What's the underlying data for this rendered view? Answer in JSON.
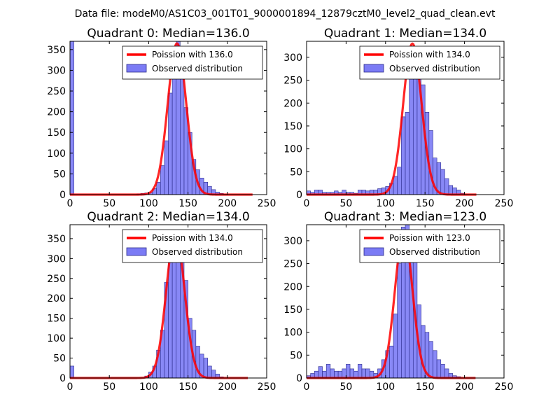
{
  "suptitle": "Data file: modeM0/AS1C03_001T01_9000001894_12879cztM0_level2_quad_clean.evt",
  "colors": {
    "bars": "#7b7bf5",
    "bar_edge": "#2b2b8a",
    "fit_line": "#ff0000",
    "frame": "#000000"
  },
  "legend_labels": {
    "observed": "Observed distribution"
  },
  "chart_data": [
    {
      "type": "bar",
      "title": "Quadrant 0: Median=136.0",
      "median": 136.0,
      "legend_fit": "Poission with 136.0",
      "xlim": [
        0,
        250
      ],
      "ylim": [
        0,
        370
      ],
      "xticks": [
        0,
        50,
        100,
        150,
        200,
        250
      ],
      "yticks": [
        0,
        50,
        100,
        150,
        200,
        250,
        300,
        350
      ],
      "bin_width": 5,
      "bins": [
        [
          0,
          370
        ],
        [
          85,
          2
        ],
        [
          90,
          3
        ],
        [
          95,
          4
        ],
        [
          100,
          5
        ],
        [
          105,
          15
        ],
        [
          110,
          30
        ],
        [
          115,
          70
        ],
        [
          120,
          130
        ],
        [
          125,
          245
        ],
        [
          130,
          330
        ],
        [
          135,
          370
        ],
        [
          140,
          340
        ],
        [
          145,
          210
        ],
        [
          150,
          150
        ],
        [
          155,
          85
        ],
        [
          160,
          60
        ],
        [
          165,
          40
        ],
        [
          170,
          30
        ],
        [
          175,
          20
        ],
        [
          180,
          12
        ],
        [
          185,
          6
        ],
        [
          190,
          3
        ],
        [
          195,
          1
        ]
      ],
      "fit": {
        "peak": 365,
        "mean": 136,
        "sigma": 11.7,
        "line_end": 232
      }
    },
    {
      "type": "bar",
      "title": "Quadrant 1: Median=134.0",
      "median": 134.0,
      "legend_fit": "Poission with 134.0",
      "xlim": [
        0,
        250
      ],
      "ylim": [
        0,
        335
      ],
      "xticks": [
        0,
        50,
        100,
        150,
        200,
        250
      ],
      "yticks": [
        0,
        50,
        100,
        150,
        200,
        250,
        300
      ],
      "bin_width": 5,
      "bins": [
        [
          0,
          8
        ],
        [
          5,
          5
        ],
        [
          10,
          10
        ],
        [
          15,
          10
        ],
        [
          20,
          5
        ],
        [
          25,
          5
        ],
        [
          30,
          5
        ],
        [
          35,
          8
        ],
        [
          40,
          5
        ],
        [
          45,
          10
        ],
        [
          50,
          5
        ],
        [
          55,
          5
        ],
        [
          60,
          3
        ],
        [
          65,
          10
        ],
        [
          70,
          10
        ],
        [
          75,
          8
        ],
        [
          80,
          10
        ],
        [
          85,
          10
        ],
        [
          90,
          13
        ],
        [
          95,
          15
        ],
        [
          100,
          18
        ],
        [
          105,
          25
        ],
        [
          110,
          40
        ],
        [
          115,
          60
        ],
        [
          120,
          170
        ],
        [
          125,
          180
        ],
        [
          130,
          290
        ],
        [
          135,
          320
        ],
        [
          140,
          300
        ],
        [
          145,
          240
        ],
        [
          150,
          180
        ],
        [
          155,
          140
        ],
        [
          160,
          80
        ],
        [
          165,
          70
        ],
        [
          170,
          55
        ],
        [
          175,
          35
        ],
        [
          180,
          20
        ],
        [
          185,
          15
        ],
        [
          190,
          10
        ],
        [
          195,
          3
        ]
      ],
      "fit": {
        "peak": 330,
        "mean": 134,
        "sigma": 11.6,
        "line_end": 215
      }
    },
    {
      "type": "bar",
      "title": "Quadrant 2: Median=134.0",
      "median": 134.0,
      "legend_fit": "Poission with 134.0",
      "xlim": [
        0,
        250
      ],
      "ylim": [
        0,
        385
      ],
      "xticks": [
        0,
        50,
        100,
        150,
        200,
        250
      ],
      "yticks": [
        0,
        50,
        100,
        150,
        200,
        250,
        300,
        350
      ],
      "bin_width": 5,
      "bins": [
        [
          0,
          30
        ],
        [
          95,
          5
        ],
        [
          100,
          15
        ],
        [
          105,
          30
        ],
        [
          110,
          70
        ],
        [
          115,
          120
        ],
        [
          120,
          240
        ],
        [
          125,
          290
        ],
        [
          130,
          370
        ],
        [
          135,
          360
        ],
        [
          140,
          320
        ],
        [
          145,
          245
        ],
        [
          150,
          150
        ],
        [
          155,
          120
        ],
        [
          160,
          80
        ],
        [
          165,
          60
        ],
        [
          170,
          50
        ],
        [
          175,
          30
        ],
        [
          180,
          20
        ],
        [
          185,
          10
        ],
        [
          190,
          3
        ]
      ],
      "fit": {
        "peak": 365,
        "mean": 134,
        "sigma": 11.6,
        "line_end": 226
      }
    },
    {
      "type": "bar",
      "title": "Quadrant 3: Median=123.0",
      "median": 123.0,
      "legend_fit": "Poission with 123.0",
      "xlim": [
        0,
        250
      ],
      "ylim": [
        0,
        335
      ],
      "xticks": [
        0,
        50,
        100,
        150,
        200,
        250
      ],
      "yticks": [
        0,
        50,
        100,
        150,
        200,
        250,
        300
      ],
      "bin_width": 5,
      "bins": [
        [
          0,
          5
        ],
        [
          5,
          10
        ],
        [
          10,
          15
        ],
        [
          15,
          25
        ],
        [
          20,
          15
        ],
        [
          25,
          30
        ],
        [
          30,
          20
        ],
        [
          35,
          15
        ],
        [
          40,
          15
        ],
        [
          45,
          20
        ],
        [
          50,
          30
        ],
        [
          55,
          20
        ],
        [
          60,
          15
        ],
        [
          65,
          30
        ],
        [
          70,
          20
        ],
        [
          75,
          20
        ],
        [
          80,
          15
        ],
        [
          85,
          10
        ],
        [
          90,
          20
        ],
        [
          95,
          40
        ],
        [
          100,
          60
        ],
        [
          105,
          70
        ],
        [
          110,
          140
        ],
        [
          115,
          250
        ],
        [
          120,
          330
        ],
        [
          125,
          335
        ],
        [
          130,
          290
        ],
        [
          135,
          290
        ],
        [
          140,
          160
        ],
        [
          145,
          115
        ],
        [
          150,
          100
        ],
        [
          155,
          80
        ],
        [
          160,
          60
        ],
        [
          165,
          40
        ],
        [
          170,
          30
        ],
        [
          175,
          20
        ],
        [
          180,
          10
        ],
        [
          185,
          5
        ],
        [
          190,
          3
        ]
      ],
      "fit": {
        "peak": 318,
        "mean": 123,
        "sigma": 11.1,
        "line_end": 214
      }
    }
  ]
}
